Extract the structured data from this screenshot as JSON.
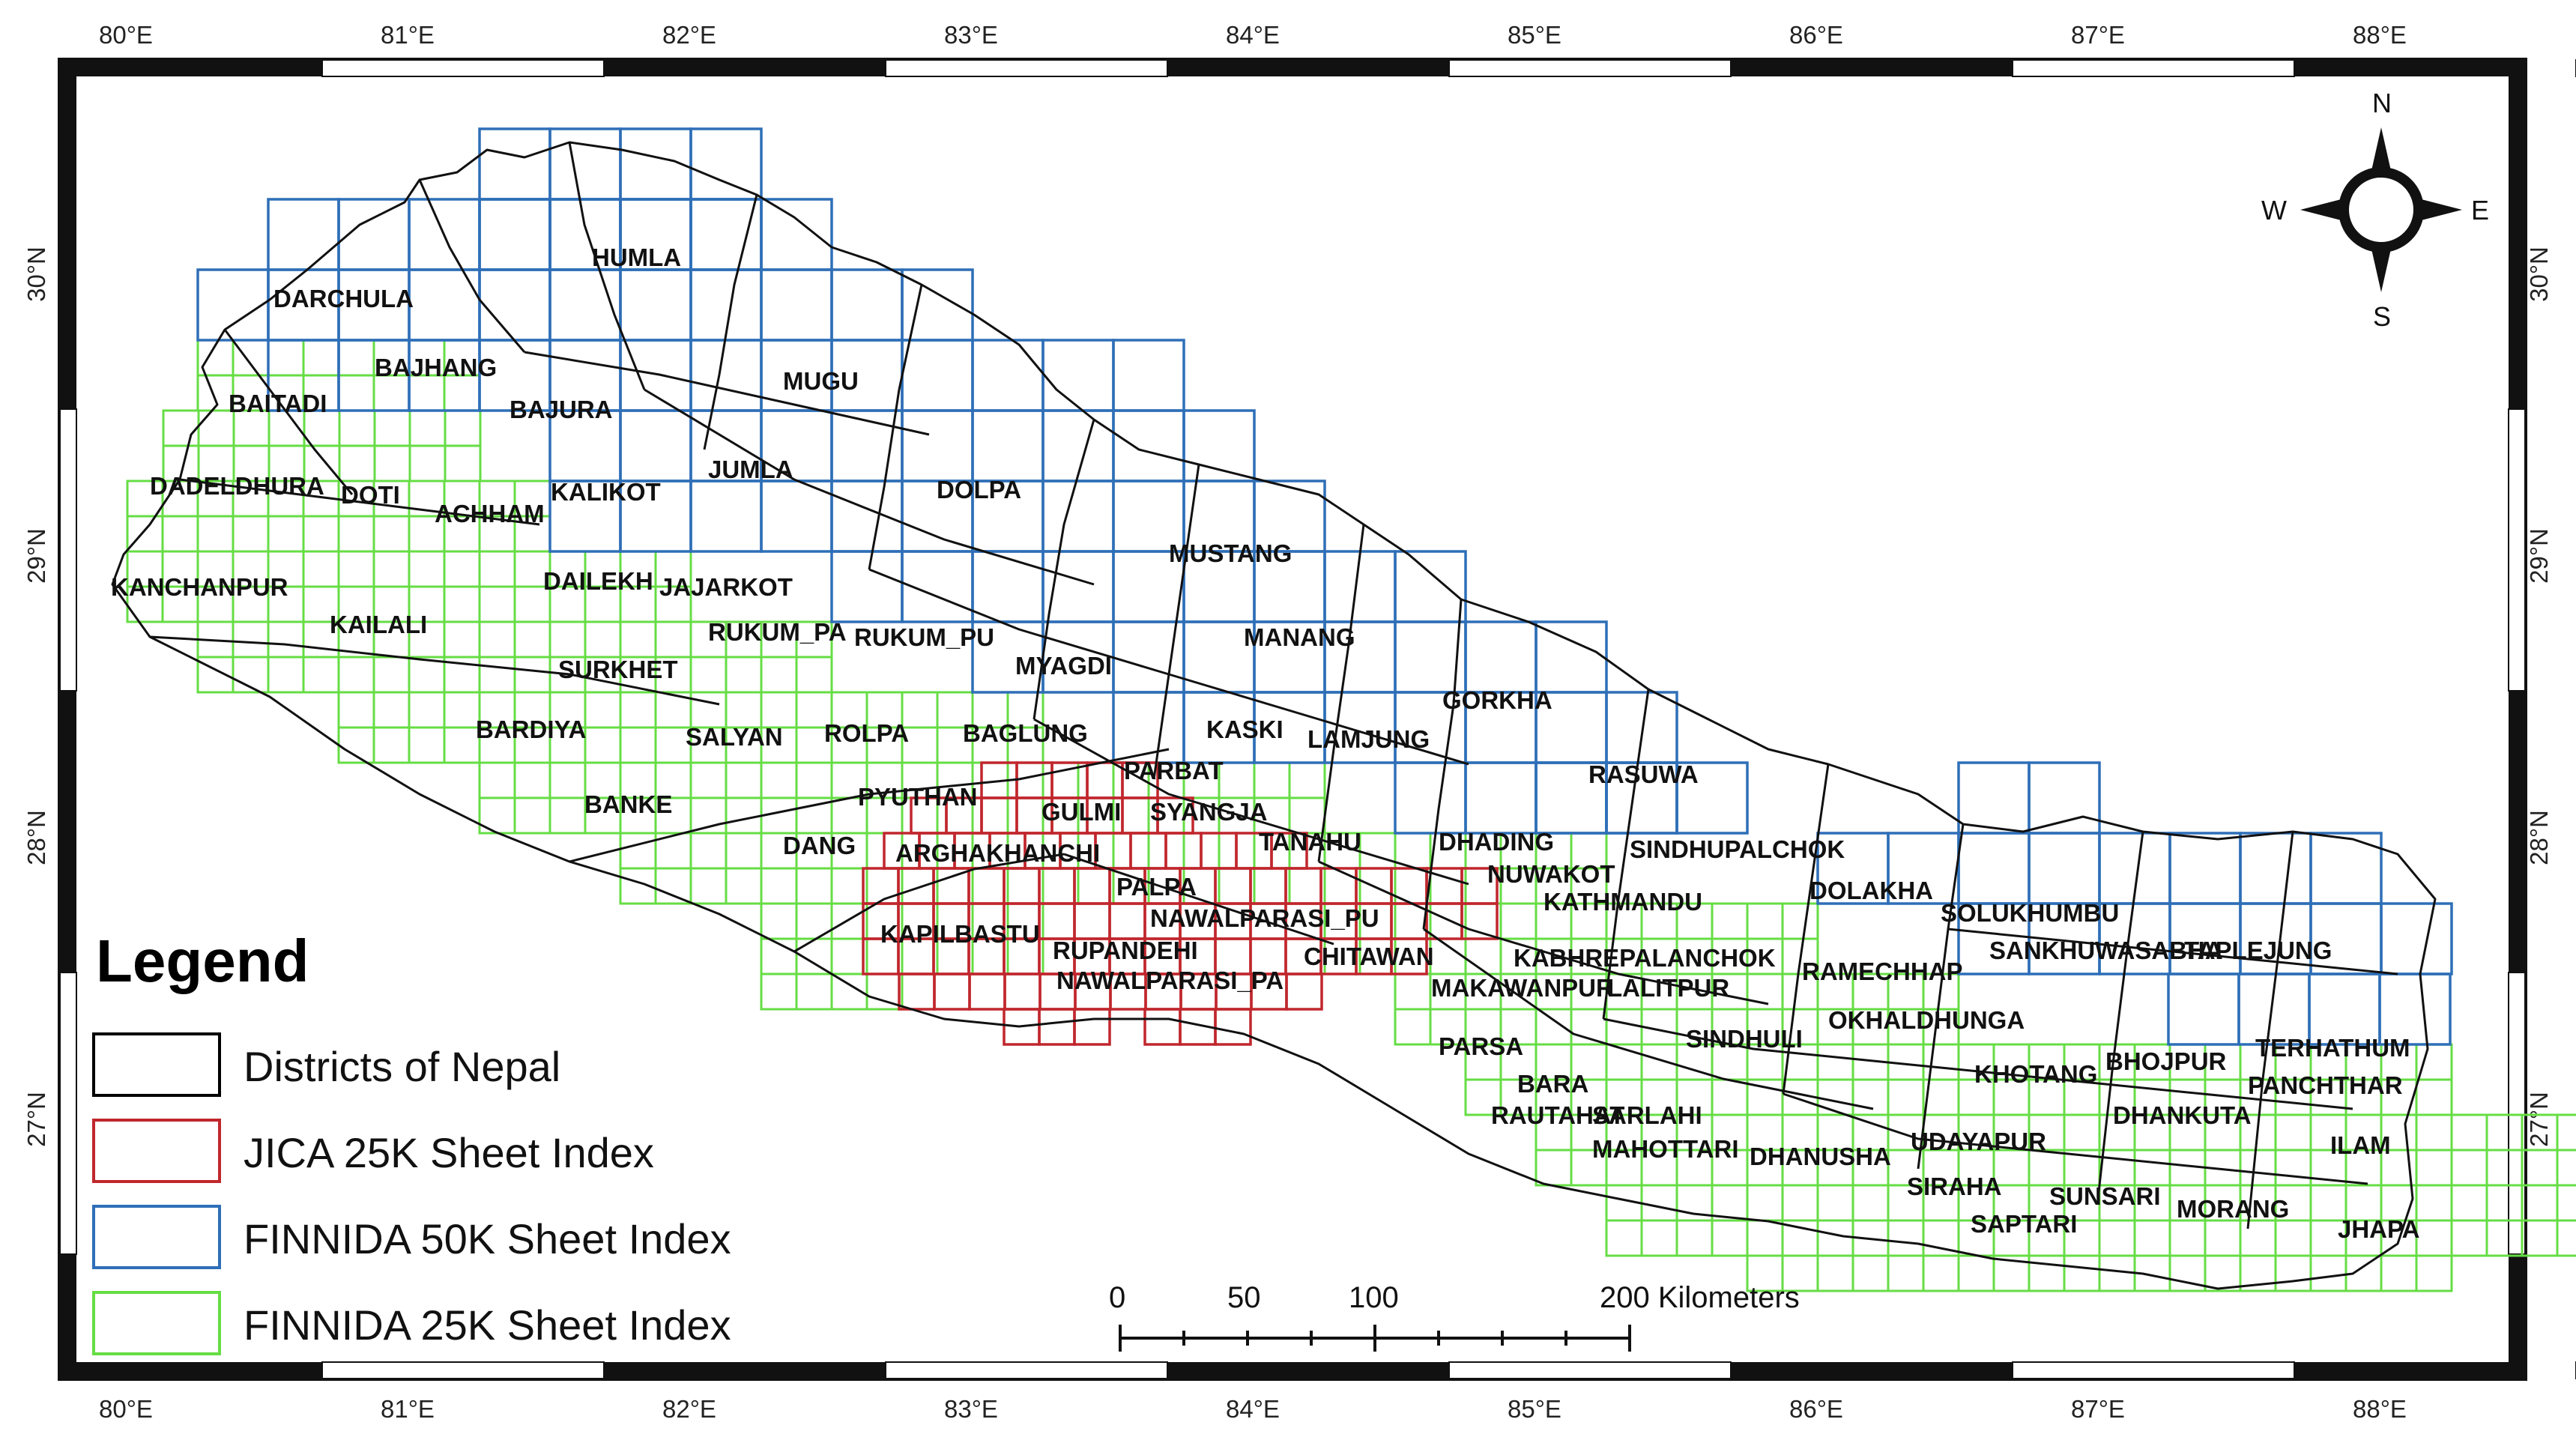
{
  "map": {
    "longitude_labels": [
      "80°E",
      "81°E",
      "82°E",
      "83°E",
      "84°E",
      "85°E",
      "86°E",
      "87°E",
      "88°E"
    ],
    "latitude_labels": [
      "30°N",
      "29°N",
      "28°N",
      "27°N"
    ],
    "districts": [
      "HUMLA",
      "DARCHULA",
      "BAJHANG",
      "BAJURA",
      "MUGU",
      "BAITADI",
      "DADELDHURA",
      "DOTI",
      "ACHHAM",
      "KALIKOT",
      "JUMLA",
      "DOLPA",
      "KANCHANPUR",
      "KAILALI",
      "DAILEKH",
      "JAJARKOT",
      "MUSTANG",
      "RUKUM_PA",
      "RUKUM_PU",
      "MANANG",
      "SURKHET",
      "MYAGDI",
      "BARDIYA",
      "SALYAN",
      "ROLPA",
      "BAGLUNG",
      "KASKI",
      "LAMJUNG",
      "GORKHA",
      "PARBAT",
      "PYUTHAN",
      "GULMI",
      "SYANGJA",
      "BANKE",
      "RASUWA",
      "TANAHU",
      "DANG",
      "ARGHAKHANCHI",
      "DHADING",
      "SINDHUPALCHOK",
      "NUWAKOT",
      "PALPA",
      "KATHMANDU",
      "DOLAKHA",
      "NAWALPARASI_PU",
      "SOLUKHUMBU",
      "KAPILBASTU",
      "RUPANDEHI",
      "CHITAWAN",
      "KABHREPALANCHOK",
      "SANKHUWASABHA",
      "TAPLEJUNG",
      "NAWALPARASI_PA",
      "RAMECHHAP",
      "MAKAWANPUR",
      "LALITPUR",
      "OKHALDHUNGA",
      "SINDHULI",
      "PARSA",
      "TERHATHUM",
      "BHOJPUR",
      "KHOTANG",
      "PANCHTHAR",
      "BARA",
      "RAUTAHAT",
      "SARLAHI",
      "DHANKUTA",
      "MAHOTTARI",
      "DHANUSHA",
      "UDAYAPUR",
      "ILAM",
      "SIRAHA",
      "SUNSARI",
      "MORANG",
      "SAPTARI",
      "JHAPA"
    ]
  },
  "legend": {
    "title": "Legend",
    "items": [
      {
        "label": "Districts of Nepal",
        "color": "#000000"
      },
      {
        "label": "JICA 25K Sheet Index",
        "color": "#c0272d"
      },
      {
        "label": "FINNIDA 50K Sheet Index",
        "color": "#2e6fb7"
      },
      {
        "label": "FINNIDA 25K Sheet Index",
        "color": "#66dd44"
      }
    ]
  },
  "scale_bar": {
    "labels": [
      "0",
      "50",
      "100",
      "200 Kilometers"
    ],
    "unit": "Kilometers"
  },
  "north_arrow": {
    "n": "N",
    "s": "S",
    "e": "E",
    "w": "W"
  }
}
